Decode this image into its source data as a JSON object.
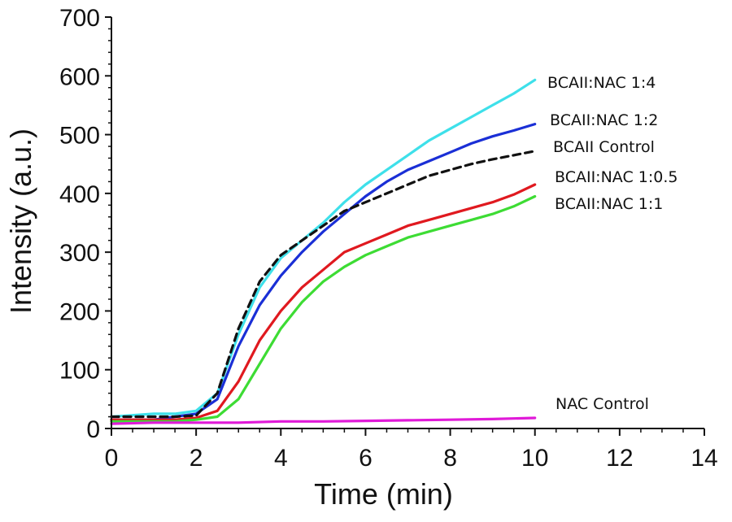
{
  "chart_data": {
    "type": "line",
    "xlabel": "Time (min)",
    "ylabel": "Intensity (a.u.)",
    "xlim": [
      0,
      14
    ],
    "ylim": [
      0,
      700
    ],
    "xticks": [
      0,
      2,
      4,
      6,
      8,
      10,
      12,
      14
    ],
    "yticks": [
      0,
      100,
      200,
      300,
      400,
      500,
      600,
      700
    ],
    "x_tick_labels": [
      "0",
      "2",
      "4",
      "6",
      "8",
      "10",
      "12",
      "14"
    ],
    "y_tick_labels": [
      "0",
      "100",
      "200",
      "300",
      "400",
      "500",
      "600",
      "700"
    ],
    "series": [
      {
        "name": "BCAII:NAC 1:4",
        "label": "BCAII:NAC 1:4",
        "color": "#3ee0ea",
        "dash": "",
        "x": [
          0,
          1,
          1.5,
          2,
          2.5,
          3,
          3.5,
          4,
          4.5,
          5,
          5.5,
          6,
          6.5,
          7,
          7.5,
          8,
          8.5,
          9,
          9.5,
          10
        ],
        "y": [
          20,
          25,
          25,
          30,
          60,
          160,
          240,
          290,
          320,
          350,
          385,
          415,
          440,
          465,
          490,
          510,
          530,
          550,
          570,
          593
        ]
      },
      {
        "name": "BCAII:NAC 1:2",
        "label": "BCAII:NAC 1:2",
        "color": "#1a2fd6",
        "dash": "",
        "x": [
          0,
          1,
          1.5,
          2,
          2.5,
          3,
          3.5,
          4,
          4.5,
          5,
          5.5,
          6,
          6.5,
          7,
          7.5,
          8,
          8.5,
          9,
          9.5,
          10
        ],
        "y": [
          15,
          15,
          20,
          25,
          50,
          140,
          210,
          260,
          300,
          335,
          365,
          395,
          420,
          440,
          455,
          470,
          485,
          497,
          507,
          518
        ]
      },
      {
        "name": "BCAII Control",
        "label": "BCAII Control",
        "color": "#111111",
        "dash": "9,6",
        "x": [
          0,
          1,
          1.5,
          2,
          2.5,
          3,
          3.5,
          4,
          4.5,
          5,
          5.5,
          6,
          6.5,
          7,
          7.5,
          8,
          8.5,
          9,
          9.5,
          10
        ],
        "y": [
          20,
          20,
          20,
          22,
          60,
          170,
          250,
          295,
          320,
          345,
          370,
          385,
          400,
          415,
          430,
          440,
          450,
          458,
          465,
          472
        ]
      },
      {
        "name": "BCAII:NAC 1:0.5",
        "label": "BCAII:NAC 1:0.5",
        "color": "#e0191f",
        "dash": "",
        "x": [
          0,
          1,
          1.5,
          2,
          2.5,
          3,
          3.5,
          4,
          4.5,
          5,
          5.5,
          6,
          6.5,
          7,
          7.5,
          8,
          8.5,
          9,
          9.5,
          10
        ],
        "y": [
          15,
          15,
          15,
          18,
          30,
          80,
          150,
          200,
          240,
          270,
          300,
          315,
          330,
          345,
          355,
          365,
          375,
          385,
          398,
          415
        ]
      },
      {
        "name": "BCAII:NAC 1:1",
        "label": "BCAII:NAC 1:1",
        "color": "#3ddc34",
        "dash": "",
        "x": [
          0,
          1,
          1.5,
          2,
          2.5,
          3,
          3.5,
          4,
          4.5,
          5,
          5.5,
          6,
          6.5,
          7,
          7.5,
          8,
          8.5,
          9,
          9.5,
          10
        ],
        "y": [
          12,
          12,
          12,
          15,
          20,
          50,
          110,
          170,
          215,
          250,
          275,
          295,
          310,
          325,
          335,
          345,
          355,
          365,
          378,
          395
        ]
      },
      {
        "name": "NAC Control",
        "label": "NAC Control",
        "color": "#e01ad8",
        "dash": "",
        "x": [
          0,
          1,
          2,
          3,
          4,
          5,
          6,
          7,
          8,
          9,
          10
        ],
        "y": [
          8,
          10,
          10,
          10,
          12,
          12,
          13,
          14,
          15,
          16,
          18
        ]
      }
    ]
  }
}
